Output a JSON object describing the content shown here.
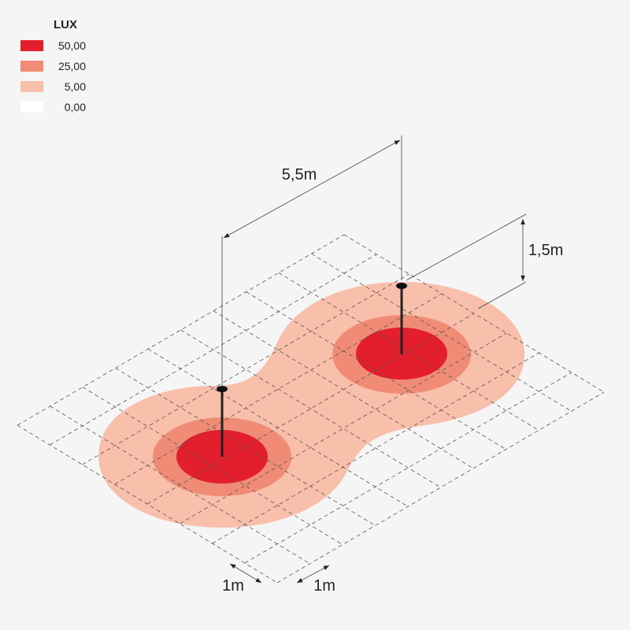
{
  "legend": {
    "title": "LUX",
    "entries": [
      {
        "label": "50,00",
        "color": "#e31e2d"
      },
      {
        "label": "25,00",
        "color": "#f08c75"
      },
      {
        "label": "5,00",
        "color": "#f8bfaa"
      },
      {
        "label": "0,00",
        "color": "#ffffff"
      }
    ]
  },
  "dimensions": {
    "spacing": "5,5m",
    "height": "1,5m",
    "grid_x": "1m",
    "grid_y": "1m"
  }
}
